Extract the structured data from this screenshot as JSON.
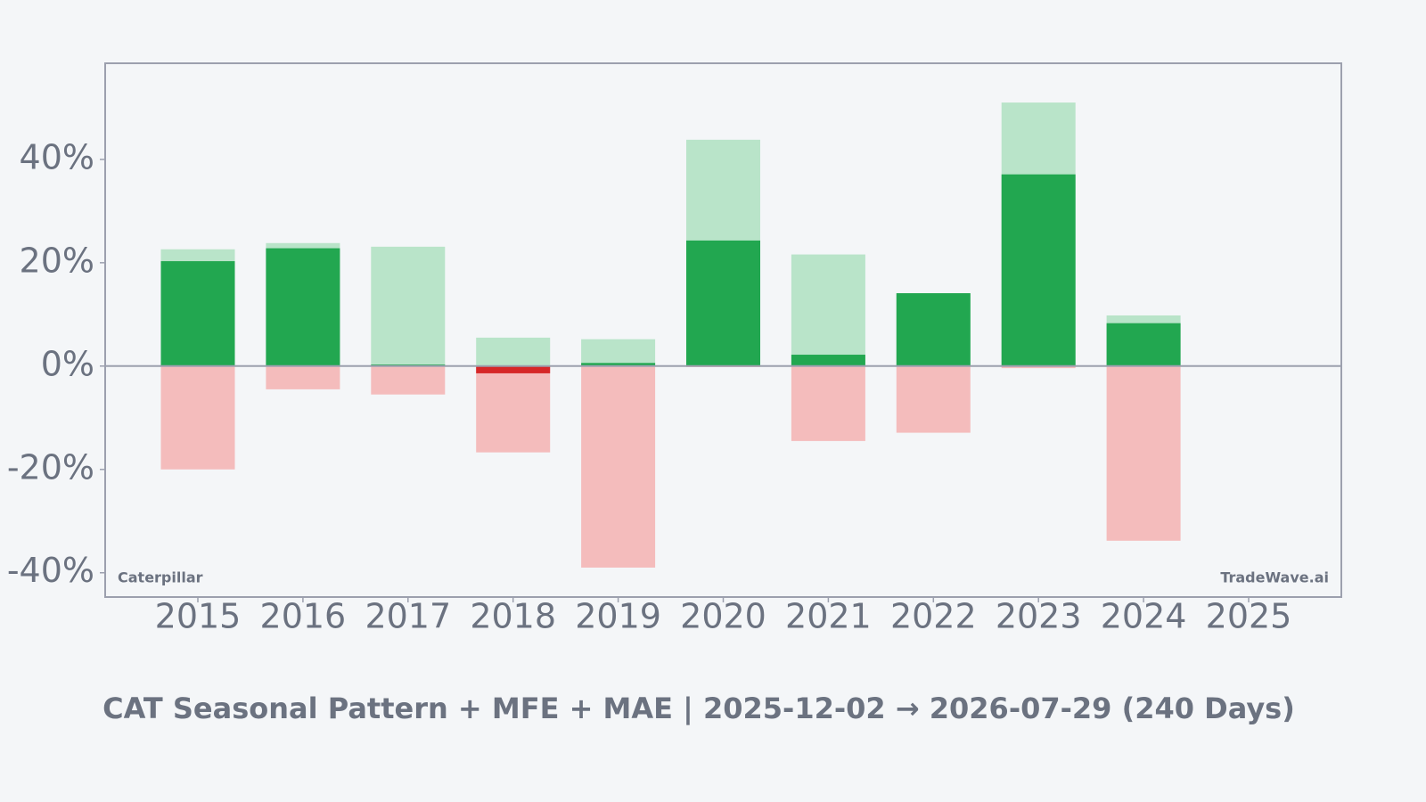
{
  "chart_data": {
    "type": "bar",
    "title": "CAT Seasonal Pattern + MFE + MAE | 2025-12-02 → 2026-07-29 (240 Days)",
    "annotations": [
      "Caterpillar",
      "TradeWave.ai"
    ],
    "categories": [
      "2015",
      "2016",
      "2017",
      "2018",
      "2019",
      "2020",
      "2021",
      "2022",
      "2023",
      "2024",
      "2025"
    ],
    "series": [
      {
        "color": "#b9e4c9",
        "values": [
          22.6,
          23.8,
          23.1,
          5.5,
          5.2,
          43.8,
          21.6,
          14.1,
          51.0,
          9.8,
          null
        ]
      },
      {
        "color": "#f4bcbc",
        "values": [
          -20.0,
          -4.5,
          -5.5,
          -16.7,
          -39.0,
          -0.2,
          -14.5,
          -12.9,
          -0.4,
          -33.8,
          null
        ]
      },
      {
        "color": "#22a750",
        "negative_color": "#d62728",
        "values": [
          20.3,
          22.8,
          0.3,
          -1.4,
          0.6,
          24.3,
          2.2,
          14.1,
          37.1,
          8.3,
          null
        ]
      }
    ],
    "ylim": [
      -44.7,
      58.6
    ],
    "yticks": [
      {
        "value": -40,
        "label": "-40%"
      },
      {
        "value": -20,
        "label": "-20%"
      },
      {
        "value": 0,
        "label": "0%"
      },
      {
        "value": 20,
        "label": "20%"
      },
      {
        "value": 40,
        "label": "40%"
      }
    ]
  }
}
